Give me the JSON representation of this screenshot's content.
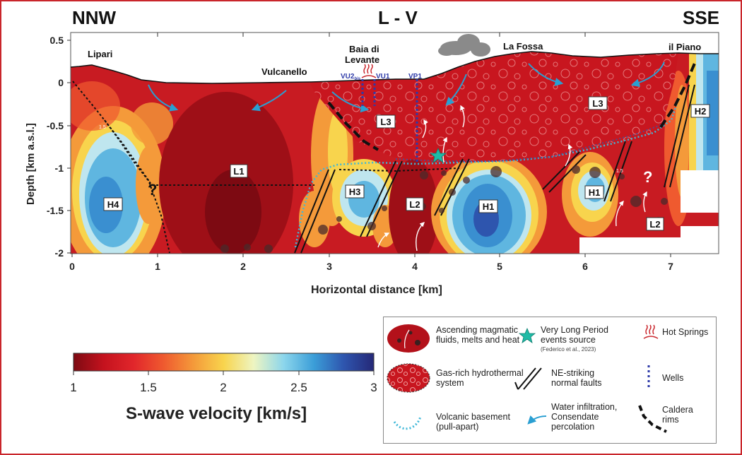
{
  "orientation": {
    "left": "NNW",
    "center": "L - V",
    "right": "SSE"
  },
  "axes": {
    "ylabel": "Depth [km a.s.l.]",
    "xlabel": "Horizontal distance [km]",
    "y_ticks": [
      "0.5",
      "0",
      "-0.5",
      "-1",
      "-1.5",
      "-2"
    ],
    "x_ticks": [
      "0",
      "1",
      "2",
      "3",
      "4",
      "5",
      "6",
      "7"
    ]
  },
  "places": {
    "lipari": "Lipari",
    "vulcanello": "Vulcanello",
    "baia_line1": "Baia di",
    "baia_line2": "Levante",
    "la_fossa": "La Fossa",
    "il_piano": "il Piano"
  },
  "wells": {
    "vu2": "VU2",
    "vu2_sub": "bis",
    "vu1": "VU1",
    "vp1": "VP1"
  },
  "zones": {
    "l1": "L1",
    "l2a": "L2",
    "l2b": "L2",
    "l3a": "L3",
    "l3b": "L3",
    "h1a": "H1",
    "h1b": "H1",
    "h2": "H2",
    "h3": "H3",
    "h4": "H4",
    "q1": "?",
    "q2": "?"
  },
  "contour_labels": {
    "c1": "1.5",
    "c2": "1.5"
  },
  "colorbar": {
    "ticks": [
      "1",
      "1.5",
      "2",
      "2.5",
      "3"
    ],
    "title": "S-wave velocity [km/s]",
    "colors": [
      "#7d0a12",
      "#c4121e",
      "#e1262b",
      "#ef5a2f",
      "#f49a3a",
      "#f8d44d",
      "#eef5c2",
      "#8cd6ec",
      "#3b9ed8",
      "#2e55ae",
      "#252877"
    ]
  },
  "legend": {
    "ascending_l1": "Ascending magmatic",
    "ascending_l2": "fluids, melts and heat",
    "vlp_l1": "Very Long Period",
    "vlp_l2": "events source",
    "vlp_ref": "(Federico et al., 2023)",
    "hot_springs": "Hot Springs",
    "gas_l1": "Gas-rich hydrothermal",
    "gas_l2": "system",
    "faults_l1": "NE-striking",
    "faults_l2": "normal faults",
    "wells": "Wells",
    "basement_l1": "Volcanic basement",
    "basement_l2": "(pull-apart)",
    "water_l1": "Water infiltration,",
    "water_l2": "Consendate",
    "water_l3": "percolation",
    "caldera_l1": "Caldera",
    "caldera_l2": "rims"
  },
  "style_colors": {
    "frame": "#c9252b",
    "basement_line": "#3fb8d8",
    "arrows": "#2a9fd2",
    "wells": "#2d3aa8",
    "vlp_star": "#1fbba6"
  }
}
